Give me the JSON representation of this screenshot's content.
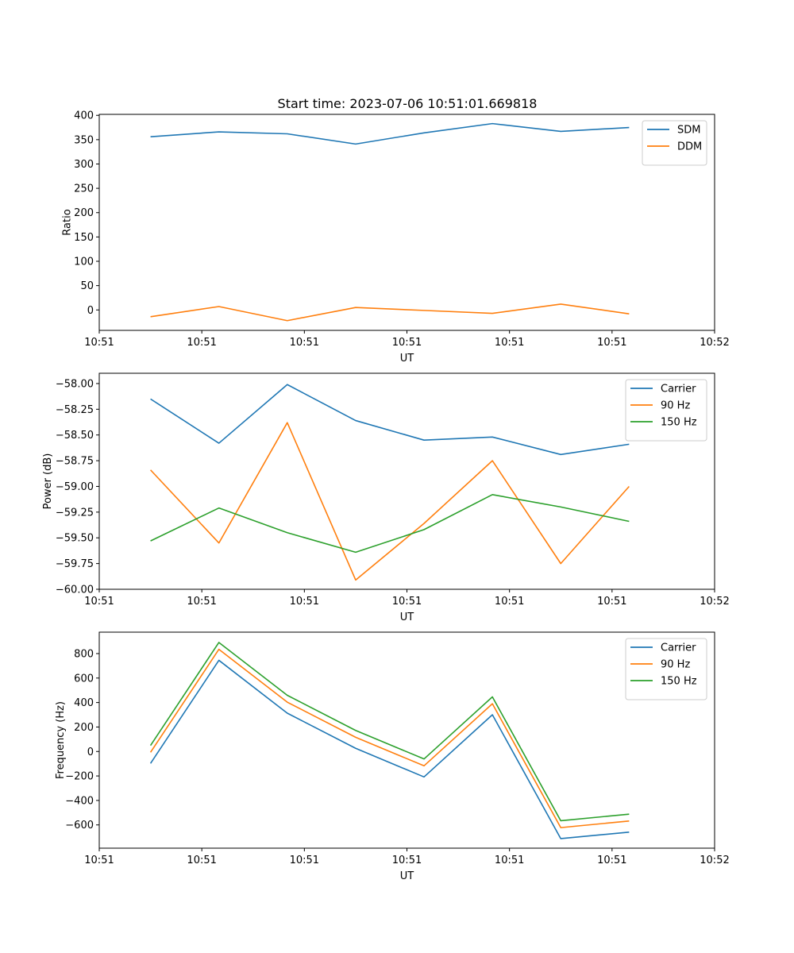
{
  "figure": {
    "title": "Start time: 2023-07-06 10:51:01.669818"
  },
  "chart_data": [
    {
      "type": "line",
      "xlabel": "UT",
      "ylabel": "Ratio",
      "x": [
        1,
        2,
        3,
        4,
        5,
        6,
        7,
        8
      ],
      "xlim": [
        0.25,
        9.25
      ],
      "xticks": [
        0.25,
        1.75,
        3.25,
        4.75,
        6.25,
        7.75,
        9.25
      ],
      "xtick_labels": [
        "10:51",
        "10:51",
        "10:51",
        "10:51",
        "10:51",
        "10:51",
        "10:52"
      ],
      "ylim": [
        -42,
        402
      ],
      "yticks": [
        0,
        50,
        100,
        150,
        200,
        250,
        300,
        350,
        400
      ],
      "ytick_labels": [
        "0",
        "50",
        "100",
        "150",
        "200",
        "250",
        "300",
        "350",
        "400"
      ],
      "legend": "top-right",
      "series": [
        {
          "name": "SDM",
          "color": "#1f77b4",
          "values": [
            356,
            366,
            362,
            341,
            364,
            383,
            367,
            375
          ]
        },
        {
          "name": "DDM",
          "color": "#ff7f0e",
          "values": [
            -14,
            7,
            -22,
            5,
            -1,
            -7,
            12,
            -8
          ]
        }
      ]
    },
    {
      "type": "line",
      "xlabel": "UT",
      "ylabel": "Power (dB)",
      "x": [
        1,
        2,
        3,
        4,
        5,
        6,
        7,
        8
      ],
      "xlim": [
        0.25,
        9.25
      ],
      "xticks": [
        0.25,
        1.75,
        3.25,
        4.75,
        6.25,
        7.75,
        9.25
      ],
      "xtick_labels": [
        "10:51",
        "10:51",
        "10:51",
        "10:51",
        "10:51",
        "10:51",
        "10:52"
      ],
      "ylim": [
        -60.0,
        -57.9
      ],
      "yticks": [
        -60.0,
        -59.75,
        -59.5,
        -59.25,
        -59.0,
        -58.75,
        -58.5,
        -58.25,
        -58.0
      ],
      "ytick_labels": [
        "−60.00",
        "−59.75",
        "−59.50",
        "−59.25",
        "−59.00",
        "−58.75",
        "−58.50",
        "−58.25",
        "−58.00"
      ],
      "legend": "top-right",
      "series": [
        {
          "name": "Carrier",
          "color": "#1f77b4",
          "values": [
            -58.15,
            -58.58,
            -58.01,
            -58.36,
            -58.55,
            -58.52,
            -58.69,
            -58.59
          ]
        },
        {
          "name": "90 Hz",
          "color": "#ff7f0e",
          "values": [
            -58.84,
            -59.55,
            -58.38,
            -59.91,
            -59.36,
            -58.75,
            -59.75,
            -59.0
          ]
        },
        {
          "name": "150 Hz",
          "color": "#2ca02c",
          "values": [
            -59.53,
            -59.21,
            -59.45,
            -59.64,
            -59.42,
            -59.08,
            -59.2,
            -59.34
          ]
        }
      ]
    },
    {
      "type": "line",
      "xlabel": "UT",
      "ylabel": "Frequency (Hz)",
      "x": [
        1,
        2,
        3,
        4,
        5,
        6,
        7,
        8
      ],
      "xlim": [
        0.25,
        9.25
      ],
      "xticks": [
        0.25,
        1.75,
        3.25,
        4.75,
        6.25,
        7.75,
        9.25
      ],
      "xtick_labels": [
        "10:51",
        "10:51",
        "10:51",
        "10:51",
        "10:51",
        "10:51",
        "10:52"
      ],
      "ylim": [
        -790,
        975
      ],
      "yticks": [
        -600,
        -400,
        -200,
        0,
        200,
        400,
        600,
        800
      ],
      "ytick_labels": [
        "−600",
        "−400",
        "−200",
        "0",
        "200",
        "400",
        "600",
        "800"
      ],
      "legend": "top-right",
      "series": [
        {
          "name": "Carrier",
          "color": "#1f77b4",
          "values": [
            -98,
            745,
            313,
            26,
            -208,
            300,
            -712,
            -659
          ]
        },
        {
          "name": "90 Hz",
          "color": "#ff7f0e",
          "values": [
            -7,
            835,
            403,
            116,
            -117,
            390,
            -622,
            -568
          ]
        },
        {
          "name": "150 Hz",
          "color": "#2ca02c",
          "values": [
            49,
            891,
            459,
            172,
            -61,
            446,
            -566,
            -512
          ]
        }
      ]
    }
  ]
}
